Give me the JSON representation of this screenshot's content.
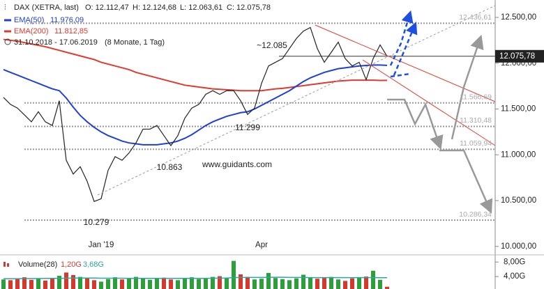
{
  "chart_data": {
    "type": "line",
    "header": {
      "instrument": "DAX (XETRA, last)",
      "open": "O: 12.112,47",
      "high": "H: 12.124,68",
      "low": "L: 12.063,61",
      "close": "C: 12.075,78",
      "period": "31.10.2018 - 17.06.2019",
      "span": "(8 Monate, 1 Tag)"
    },
    "categories": [
      null,
      null,
      null,
      null,
      null,
      null,
      null,
      null,
      null,
      null,
      null,
      null,
      null,
      null,
      "Jan '19",
      null,
      null,
      null,
      null,
      null,
      null,
      null,
      null,
      null,
      null,
      null,
      null,
      null,
      null,
      null,
      null,
      null,
      null,
      null,
      null,
      null,
      null,
      "Apr",
      null,
      null,
      null,
      null,
      null,
      null,
      null,
      null,
      null,
      null,
      null,
      null,
      null,
      null,
      null,
      null,
      null,
      null
    ],
    "series": [
      {
        "name": "DAX (XETRA, last)",
        "color": "#222222",
        "values": [
          11626,
          11550,
          11510,
          11436,
          11360,
          11470,
          11360,
          11320,
          11590,
          10940,
          10790,
          10870,
          10710,
          10490,
          10520,
          10830,
          10980,
          10940,
          11020,
          11130,
          11280,
          11280,
          11320,
          11210,
          11100,
          11210,
          11400,
          11510,
          11550,
          11660,
          11700,
          11660,
          11700,
          11700,
          11590,
          11440,
          11510,
          11780,
          11970,
          12010,
          12050,
          12160,
          12270,
          12350,
          12390,
          12160,
          12010,
          12120,
          12230,
          12050,
          11970,
          12010,
          11820,
          12050,
          12200,
          12076
        ]
      },
      {
        "name": "EMA(50)",
        "legend_value": "11.976,09",
        "color": "#1f3fd6",
        "values": [
          11930,
          11900,
          11870,
          11840,
          11810,
          11780,
          11750,
          11720,
          11700,
          11620,
          11520,
          11430,
          11360,
          11300,
          11250,
          11210,
          11180,
          11150,
          11130,
          11120,
          11110,
          11110,
          11110,
          11120,
          11130,
          11150,
          11180,
          11220,
          11270,
          11320,
          11360,
          11390,
          11420,
          11440,
          11460,
          11470,
          11500,
          11540,
          11580,
          11620,
          11660,
          11700,
          11750,
          11800,
          11840,
          11870,
          11900,
          11920,
          11940,
          11950,
          11960,
          11970,
          11975,
          11980,
          11980,
          11976
        ]
      },
      {
        "name": "EMA(200)",
        "legend_value": "11.812,85",
        "color": "#e03a2e",
        "values": [
          12260,
          12250,
          12240,
          12225,
          12210,
          12195,
          12180,
          12160,
          12140,
          12120,
          12100,
          12080,
          12060,
          12040,
          12010,
          11990,
          11970,
          11950,
          11930,
          11900,
          11880,
          11860,
          11840,
          11820,
          11800,
          11780,
          11760,
          11750,
          11740,
          11730,
          11720,
          11715,
          11710,
          11705,
          11700,
          11700,
          11700,
          11700,
          11710,
          11720,
          11725,
          11735,
          11745,
          11755,
          11765,
          11775,
          11785,
          11795,
          11805,
          11810,
          11815,
          11815,
          11815,
          11815,
          11812,
          11813
        ]
      }
    ],
    "ylim": [
      9915,
      12690
    ],
    "yticks": [
      {
        "value": 10000,
        "label": "10.000,00"
      },
      {
        "value": 10500,
        "label": "10.500,00"
      },
      {
        "value": 11000,
        "label": "11.000,00"
      },
      {
        "value": 11500,
        "label": "11.500,00"
      },
      {
        "value": 12000,
        "label": "12.000,00"
      },
      {
        "value": 12500,
        "label": "12.500,00"
      }
    ],
    "current": {
      "value": 12075.78,
      "label": "12.075,78"
    },
    "levels": [
      {
        "value": 12436.61,
        "label": "12.436,61"
      },
      {
        "value": 11566.69,
        "label": "11.566,69"
      },
      {
        "value": 11310.48,
        "label": "11.310,48"
      },
      {
        "value": 11059.94,
        "label": "11.059,94"
      },
      {
        "value": 10286.34,
        "label": "10.286,34"
      }
    ],
    "annotations": [
      "~12.085",
      "11.299",
      "10.863",
      "10.279",
      "www.guidants.com"
    ],
    "volume": {
      "name": "Volume(28)",
      "last_label": "1,20G",
      "average_label": "3,68G",
      "up_color": "#2e9e3a",
      "down_color": "#d23a2e",
      "average_color": "#2aa7a0",
      "values": [
        3.2,
        3.0,
        3.5,
        3.8,
        3.1,
        3.4,
        2.9,
        3.6,
        4.2,
        5.1,
        4.4,
        3.9,
        3.5,
        3.0,
        2.6,
        3.3,
        3.8,
        3.2,
        3.5,
        3.9,
        3.6,
        3.1,
        3.4,
        3.7,
        3.2,
        3.0,
        3.5,
        3.8,
        3.3,
        3.6,
        3.9,
        4.1,
        3.7,
        8.3,
        4.6,
        3.9,
        3.2,
        3.4,
        5.0,
        3.6,
        3.3,
        3.0,
        3.5,
        4.5,
        3.8,
        3.4,
        3.6,
        3.9,
        3.2,
        2.8,
        3.5,
        3.7,
        4.0,
        5.6,
        3.1,
        1.2
      ],
      "average": [
        3.4,
        3.4,
        3.4,
        3.45,
        3.45,
        3.45,
        3.5,
        3.5,
        3.5,
        3.55,
        3.6,
        3.6,
        3.6,
        3.6,
        3.55,
        3.55,
        3.55,
        3.55,
        3.5,
        3.5,
        3.5,
        3.5,
        3.5,
        3.5,
        3.5,
        3.5,
        3.5,
        3.5,
        3.5,
        3.5,
        3.55,
        3.55,
        3.6,
        3.7,
        3.75,
        3.75,
        3.75,
        3.75,
        3.8,
        3.8,
        3.8,
        3.75,
        3.75,
        3.75,
        3.7,
        3.7,
        3.7,
        3.7,
        3.7,
        3.7,
        3.7,
        3.7,
        3.7,
        3.7,
        3.68,
        3.68
      ],
      "ylim": [
        0,
        9
      ],
      "yticks": [
        {
          "value": 4,
          "label": "4,00G"
        },
        {
          "value": 8,
          "label": "8,00G"
        }
      ]
    }
  }
}
